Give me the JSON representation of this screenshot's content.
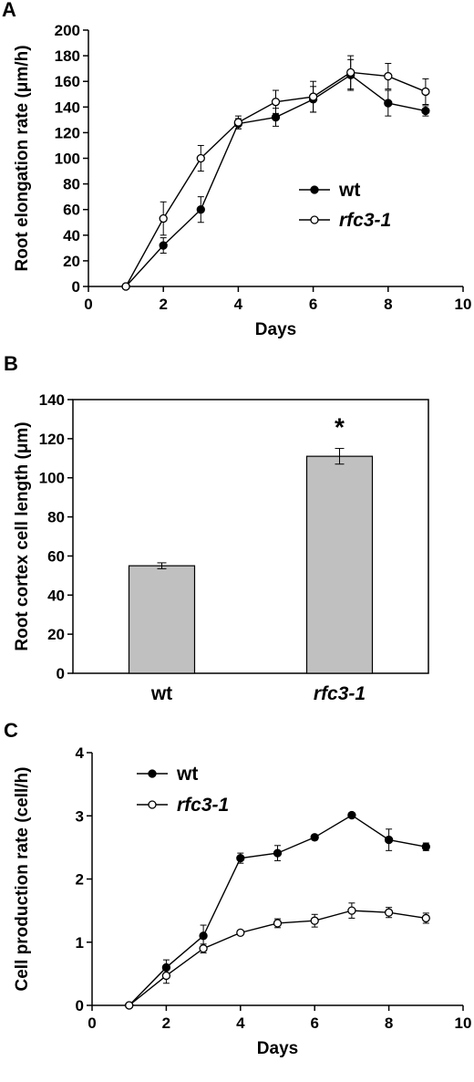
{
  "chart_data": [
    {
      "panel": "A",
      "type": "line",
      "xlabel": "Days",
      "ylabel": "Root elongation rate (μm/h)",
      "xlim": [
        0,
        10
      ],
      "ylim": [
        0,
        200
      ],
      "xticks": [
        0,
        2,
        4,
        6,
        8,
        10
      ],
      "yticks": [
        0,
        20,
        40,
        60,
        80,
        100,
        120,
        140,
        160,
        180,
        200
      ],
      "legend_position": "center-right",
      "series": [
        {
          "name": "wt",
          "marker": "filled",
          "x": [
            1,
            2,
            3,
            4,
            5,
            6,
            7,
            8,
            9
          ],
          "y": [
            0,
            32,
            60,
            127,
            132,
            146,
            165,
            143,
            137
          ],
          "err": [
            0,
            6,
            10,
            4,
            7,
            10,
            12,
            10,
            4
          ]
        },
        {
          "name": "rfc3-1",
          "marker": "open",
          "x": [
            1,
            2,
            3,
            4,
            5,
            6,
            7,
            8,
            9
          ],
          "y": [
            0,
            53,
            100,
            128,
            144,
            148,
            167,
            164,
            152
          ],
          "err": [
            0,
            13,
            10,
            5,
            9,
            12,
            13,
            10,
            10
          ]
        }
      ]
    },
    {
      "panel": "B",
      "type": "bar",
      "categories": [
        "wt",
        "rfc3-1"
      ],
      "values": [
        55,
        111
      ],
      "err": [
        1.5,
        4
      ],
      "ylabel": "Root cortex cell length (μm)",
      "ylim": [
        0,
        140
      ],
      "yticks": [
        0,
        20,
        40,
        60,
        80,
        100,
        120,
        140
      ],
      "bar_color": "#c0c0c0",
      "annotations": [
        {
          "category": "rfc3-1",
          "text": "*"
        }
      ]
    },
    {
      "panel": "C",
      "type": "line",
      "xlabel": "Days",
      "ylabel": "Cell production rate (cell/h)",
      "xlim": [
        0,
        10
      ],
      "ylim": [
        0,
        4
      ],
      "xticks": [
        0,
        2,
        4,
        6,
        8,
        10
      ],
      "yticks": [
        0,
        1,
        2,
        3,
        4
      ],
      "legend_position": "top-left",
      "series": [
        {
          "name": "wt",
          "marker": "filled",
          "x": [
            1,
            2,
            3,
            4,
            5,
            6,
            7,
            8,
            9
          ],
          "y": [
            0,
            0.6,
            1.1,
            2.33,
            2.41,
            2.66,
            3.01,
            2.62,
            2.51
          ],
          "err": [
            0,
            0.12,
            0.17,
            0.08,
            0.12,
            0.04,
            0.04,
            0.17,
            0.06
          ]
        },
        {
          "name": "rfc3-1",
          "marker": "open",
          "x": [
            1,
            2,
            3,
            4,
            5,
            6,
            7,
            8,
            9
          ],
          "y": [
            0,
            0.47,
            0.9,
            1.15,
            1.3,
            1.34,
            1.5,
            1.47,
            1.38
          ],
          "err": [
            0,
            0.12,
            0.07,
            0.03,
            0.07,
            0.1,
            0.12,
            0.08,
            0.08
          ]
        }
      ]
    }
  ]
}
